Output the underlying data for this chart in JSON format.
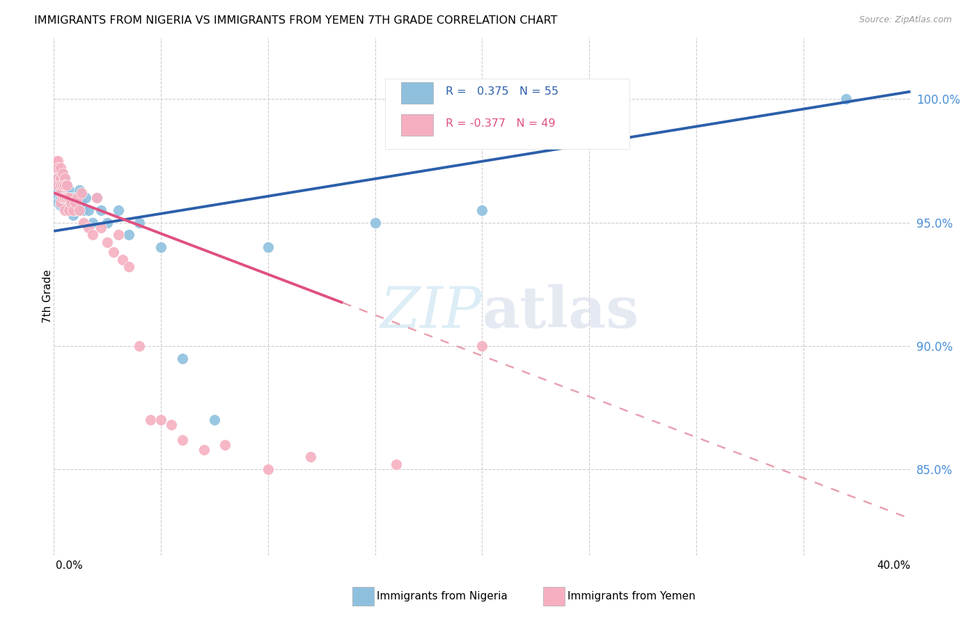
{
  "title": "IMMIGRANTS FROM NIGERIA VS IMMIGRANTS FROM YEMEN 7TH GRADE CORRELATION CHART",
  "source": "Source: ZipAtlas.com",
  "ylabel": "7th Grade",
  "yaxis_right_labels": [
    "85.0%",
    "90.0%",
    "95.0%",
    "100.0%"
  ],
  "yaxis_values": [
    0.85,
    0.9,
    0.95,
    1.0
  ],
  "xmin": 0.0,
  "xmax": 0.4,
  "ymin": 0.815,
  "ymax": 1.025,
  "watermark": "ZIPatlas",
  "nigeria_color": "#8ec0de",
  "nigeria_line_color": "#2b5faa",
  "yemen_color": "#f5afc0",
  "yemen_line_color": "#e05080",
  "nigeria_scatter_x": [
    0.001,
    0.001,
    0.001,
    0.002,
    0.002,
    0.002,
    0.002,
    0.002,
    0.002,
    0.003,
    0.003,
    0.003,
    0.003,
    0.003,
    0.003,
    0.004,
    0.004,
    0.004,
    0.004,
    0.004,
    0.005,
    0.005,
    0.005,
    0.005,
    0.006,
    0.006,
    0.006,
    0.007,
    0.007,
    0.008,
    0.008,
    0.009,
    0.009,
    0.01,
    0.01,
    0.011,
    0.012,
    0.013,
    0.014,
    0.015,
    0.016,
    0.018,
    0.02,
    0.022,
    0.025,
    0.03,
    0.035,
    0.04,
    0.05,
    0.06,
    0.075,
    0.1,
    0.15,
    0.2,
    0.37
  ],
  "nigeria_scatter_y": [
    0.97,
    0.968,
    0.965,
    0.972,
    0.968,
    0.966,
    0.963,
    0.96,
    0.958,
    0.97,
    0.968,
    0.965,
    0.963,
    0.96,
    0.957,
    0.97,
    0.967,
    0.963,
    0.96,
    0.957,
    0.968,
    0.965,
    0.962,
    0.958,
    0.965,
    0.962,
    0.958,
    0.963,
    0.958,
    0.96,
    0.955,
    0.958,
    0.953,
    0.96,
    0.955,
    0.958,
    0.963,
    0.958,
    0.955,
    0.96,
    0.955,
    0.95,
    0.96,
    0.955,
    0.95,
    0.955,
    0.945,
    0.95,
    0.94,
    0.895,
    0.87,
    0.94,
    0.95,
    0.955,
    1.0
  ],
  "yemen_scatter_x": [
    0.001,
    0.001,
    0.002,
    0.002,
    0.002,
    0.002,
    0.003,
    0.003,
    0.003,
    0.003,
    0.003,
    0.004,
    0.004,
    0.004,
    0.005,
    0.005,
    0.005,
    0.005,
    0.006,
    0.006,
    0.007,
    0.007,
    0.008,
    0.009,
    0.01,
    0.011,
    0.012,
    0.013,
    0.014,
    0.016,
    0.018,
    0.02,
    0.022,
    0.025,
    0.028,
    0.03,
    0.032,
    0.035,
    0.04,
    0.045,
    0.05,
    0.055,
    0.06,
    0.07,
    0.08,
    0.1,
    0.12,
    0.16,
    0.2
  ],
  "yemen_scatter_y": [
    0.975,
    0.972,
    0.975,
    0.972,
    0.968,
    0.965,
    0.972,
    0.968,
    0.965,
    0.962,
    0.958,
    0.97,
    0.965,
    0.96,
    0.968,
    0.965,
    0.96,
    0.955,
    0.965,
    0.96,
    0.96,
    0.955,
    0.958,
    0.955,
    0.958,
    0.96,
    0.955,
    0.962,
    0.95,
    0.948,
    0.945,
    0.96,
    0.948,
    0.942,
    0.938,
    0.945,
    0.935,
    0.932,
    0.9,
    0.87,
    0.87,
    0.868,
    0.862,
    0.858,
    0.86,
    0.85,
    0.855,
    0.852,
    0.9
  ],
  "nigeria_trend_x0": 0.0,
  "nigeria_trend_y0": 0.9465,
  "nigeria_trend_x1": 0.4,
  "nigeria_trend_y1": 1.003,
  "yemen_trend_x0": 0.0,
  "yemen_trend_y0": 0.962,
  "yemen_trend_x1_solid": 0.135,
  "yemen_trend_x1": 0.4,
  "yemen_trend_y1": 0.83
}
